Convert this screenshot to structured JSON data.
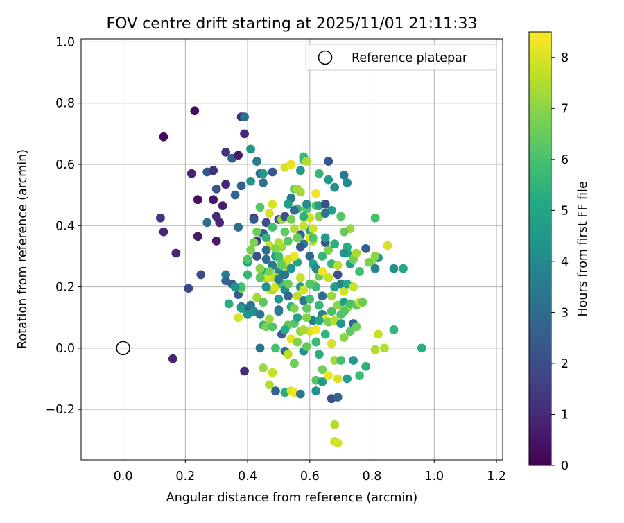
{
  "chart_data": {
    "type": "scatter",
    "title": "FOV centre drift starting at 2025/11/01 21:11:33",
    "xlabel": "Angular distance from reference (arcmin)",
    "ylabel": "Rotation from reference (arcmin)",
    "xlim": [
      -0.135,
      1.22
    ],
    "ylim": [
      -0.365,
      1.01
    ],
    "xticks": [
      0.0,
      0.2,
      0.4,
      0.6,
      0.8,
      1.0,
      1.2
    ],
    "xtick_labels": [
      "0.0",
      "0.2",
      "0.4",
      "0.6",
      "0.8",
      "1.0",
      "1.2"
    ],
    "yticks": [
      -0.2,
      0.0,
      0.2,
      0.4,
      0.6,
      0.8,
      1.0
    ],
    "ytick_labels": [
      "−0.2",
      "0.0",
      "0.2",
      "0.4",
      "0.6",
      "0.8",
      "1.0"
    ],
    "grid": true,
    "legend": {
      "placement": "top-right",
      "entries": [
        "Reference platepar"
      ]
    },
    "reference_point": {
      "x": 0.0,
      "y": 0.0,
      "label": "Reference platepar"
    },
    "colorbar": {
      "label": "Hours from first FF file",
      "min": 0,
      "max": 8.5,
      "ticks": [
        0,
        1,
        2,
        3,
        4,
        5,
        6,
        7,
        8
      ],
      "tick_labels": [
        "0",
        "1",
        "2",
        "3",
        "4",
        "5",
        "6",
        "7",
        "8"
      ],
      "colormap": "viridis"
    },
    "points": [
      [
        0.23,
        0.775,
        0.2
      ],
      [
        0.13,
        0.69,
        0.2
      ],
      [
        0.12,
        0.425,
        1.3
      ],
      [
        0.13,
        0.38,
        0.9
      ],
      [
        0.17,
        0.31,
        0.9
      ],
      [
        0.21,
        0.195,
        1.8
      ],
      [
        0.24,
        0.485,
        0.4
      ],
      [
        0.24,
        0.365,
        0.6
      ],
      [
        0.25,
        0.24,
        2.0
      ],
      [
        0.16,
        -0.035,
        0.8
      ],
      [
        0.22,
        0.57,
        0.8
      ],
      [
        0.27,
        0.575,
        2.4
      ],
      [
        0.29,
        0.58,
        1.2
      ],
      [
        0.3,
        0.52,
        2.2
      ],
      [
        0.29,
        0.485,
        0.5
      ],
      [
        0.3,
        0.43,
        1.0
      ],
      [
        0.27,
        0.41,
        3.0
      ],
      [
        0.31,
        0.41,
        0.9
      ],
      [
        0.3,
        0.35,
        0.6
      ],
      [
        0.32,
        0.465,
        0.7
      ],
      [
        0.33,
        0.535,
        0.9
      ],
      [
        0.33,
        0.64,
        1.2
      ],
      [
        0.35,
        0.62,
        2.6
      ],
      [
        0.36,
        0.5,
        2.8
      ],
      [
        0.38,
        0.53,
        2.6
      ],
      [
        0.37,
        0.63,
        0.6
      ],
      [
        0.38,
        0.755,
        1.0
      ],
      [
        0.39,
        0.755,
        3.2
      ],
      [
        0.39,
        0.7,
        1.0
      ],
      [
        0.41,
        0.65,
        4.4
      ],
      [
        0.41,
        0.545,
        4.3
      ],
      [
        0.43,
        0.61,
        3.5
      ],
      [
        0.44,
        0.57,
        3.1
      ],
      [
        0.45,
        0.57,
        4.6
      ],
      [
        0.45,
        0.54,
        3.2
      ],
      [
        0.48,
        0.575,
        2.3
      ],
      [
        0.37,
        0.395,
        3.0
      ],
      [
        0.33,
        0.24,
        3.6
      ],
      [
        0.33,
        0.22,
        2.8
      ],
      [
        0.35,
        0.21,
        2.6
      ],
      [
        0.34,
        0.145,
        5.3
      ],
      [
        0.37,
        0.175,
        2.5
      ],
      [
        0.38,
        0.135,
        3.2
      ],
      [
        0.4,
        0.13,
        2.3
      ],
      [
        0.41,
        0.14,
        3.3
      ],
      [
        0.37,
        0.1,
        8.0
      ],
      [
        0.38,
        0.195,
        7.0
      ],
      [
        0.38,
        0.2,
        5.9
      ],
      [
        0.39,
        -0.075,
        1.0
      ],
      [
        0.4,
        0.28,
        5.0
      ],
      [
        0.41,
        0.32,
        6.8
      ],
      [
        0.42,
        0.425,
        1.0
      ],
      [
        0.43,
        0.35,
        1.4
      ],
      [
        0.43,
        0.3,
        2.2
      ],
      [
        0.44,
        0.46,
        6.2
      ],
      [
        0.45,
        0.375,
        2.5
      ],
      [
        0.46,
        0.36,
        5.5
      ],
      [
        0.46,
        0.41,
        2.0
      ],
      [
        0.46,
        0.29,
        3.1
      ],
      [
        0.47,
        0.335,
        7.8
      ],
      [
        0.47,
        0.44,
        8.0
      ],
      [
        0.48,
        0.47,
        8.0
      ],
      [
        0.48,
        0.395,
        5.9
      ],
      [
        0.49,
        0.3,
        4.8
      ],
      [
        0.5,
        0.25,
        3.7
      ],
      [
        0.5,
        0.42,
        2.2
      ],
      [
        0.51,
        0.33,
        7.2
      ],
      [
        0.51,
        0.42,
        7.2
      ],
      [
        0.51,
        0.28,
        6.4
      ],
      [
        0.52,
        0.59,
        8.0
      ],
      [
        0.53,
        0.35,
        6.3
      ],
      [
        0.53,
        0.265,
        7.5
      ],
      [
        0.54,
        0.6,
        8.2
      ],
      [
        0.54,
        0.49,
        3.5
      ],
      [
        0.55,
        0.52,
        6.6
      ],
      [
        0.56,
        0.52,
        7.3
      ],
      [
        0.56,
        0.455,
        5.7
      ],
      [
        0.57,
        0.51,
        7.3
      ],
      [
        0.57,
        0.58,
        4.5
      ],
      [
        0.58,
        0.615,
        6.0
      ],
      [
        0.58,
        0.625,
        5.7
      ],
      [
        0.59,
        0.61,
        7.5
      ],
      [
        0.59,
        0.455,
        6.2
      ],
      [
        0.6,
        0.425,
        7.9
      ],
      [
        0.6,
        0.385,
        5.1
      ],
      [
        0.61,
        0.35,
        7.4
      ],
      [
        0.62,
        0.505,
        8.3
      ],
      [
        0.62,
        0.465,
        6.2
      ],
      [
        0.63,
        0.465,
        4.7
      ],
      [
        0.63,
        0.57,
        5.6
      ],
      [
        0.65,
        0.345,
        2.2
      ],
      [
        0.65,
        0.47,
        2.0
      ],
      [
        0.66,
        0.61,
        2.2
      ],
      [
        0.66,
        0.55,
        4.6
      ],
      [
        0.67,
        0.45,
        4.8
      ],
      [
        0.68,
        0.525,
        4.2
      ],
      [
        0.7,
        0.43,
        6.2
      ],
      [
        0.71,
        0.565,
        3.4
      ],
      [
        0.72,
        0.54,
        4.0
      ],
      [
        0.73,
        0.39,
        7.2
      ],
      [
        0.71,
        0.38,
        6.5
      ],
      [
        0.72,
        0.33,
        5.3
      ],
      [
        0.72,
        0.31,
        5.0
      ],
      [
        0.73,
        0.275,
        4.8
      ],
      [
        0.74,
        0.29,
        6.7
      ],
      [
        0.75,
        0.31,
        7.4
      ],
      [
        0.76,
        0.25,
        6.0
      ],
      [
        0.78,
        0.325,
        2.7
      ],
      [
        0.8,
        0.28,
        7.5
      ],
      [
        0.82,
        0.295,
        4.2
      ],
      [
        0.81,
        0.425,
        6.0
      ],
      [
        0.81,
        0.26,
        3.8
      ],
      [
        0.85,
        0.335,
        8.0
      ],
      [
        0.87,
        0.26,
        4.2
      ],
      [
        0.9,
        0.26,
        5.1
      ],
      [
        0.45,
        0.25,
        5.0
      ],
      [
        0.46,
        0.23,
        7.5
      ],
      [
        0.47,
        0.23,
        8.0
      ],
      [
        0.47,
        0.19,
        8.3
      ],
      [
        0.48,
        0.19,
        7.4
      ],
      [
        0.49,
        0.23,
        7.6
      ],
      [
        0.49,
        0.2,
        8.0
      ],
      [
        0.5,
        0.16,
        4.5
      ],
      [
        0.5,
        0.125,
        2.6
      ],
      [
        0.51,
        0.21,
        6.0
      ],
      [
        0.52,
        0.24,
        3.2
      ],
      [
        0.52,
        0.19,
        4.1
      ],
      [
        0.53,
        0.21,
        6.5
      ],
      [
        0.53,
        0.17,
        2.8
      ],
      [
        0.54,
        0.135,
        5.4
      ],
      [
        0.55,
        0.13,
        6.9
      ],
      [
        0.56,
        0.17,
        7.7
      ],
      [
        0.57,
        0.2,
        4.6
      ],
      [
        0.58,
        0.155,
        3.3
      ],
      [
        0.58,
        0.19,
        8.0
      ],
      [
        0.59,
        0.13,
        6.4
      ],
      [
        0.6,
        0.16,
        5.9
      ],
      [
        0.61,
        0.21,
        7.4
      ],
      [
        0.62,
        0.2,
        5.8
      ],
      [
        0.63,
        0.235,
        6.5
      ],
      [
        0.63,
        0.14,
        5.6
      ],
      [
        0.64,
        0.11,
        3.8
      ],
      [
        0.65,
        0.095,
        8.1
      ],
      [
        0.66,
        0.085,
        6.8
      ],
      [
        0.67,
        0.12,
        6.0
      ],
      [
        0.68,
        0.09,
        7.6
      ],
      [
        0.69,
        0.14,
        7.0
      ],
      [
        0.7,
        0.11,
        6.1
      ],
      [
        0.71,
        0.15,
        4.8
      ],
      [
        0.72,
        0.13,
        7.0
      ],
      [
        0.73,
        0.145,
        6.0
      ],
      [
        0.74,
        0.08,
        2.9
      ],
      [
        0.75,
        0.14,
        6.4
      ],
      [
        0.76,
        0.15,
        8.0
      ],
      [
        0.77,
        0.15,
        6.6
      ],
      [
        0.42,
        0.12,
        4.2
      ],
      [
        0.43,
        0.165,
        7.3
      ],
      [
        0.44,
        0.11,
        3.2
      ],
      [
        0.45,
        0.075,
        5.6
      ],
      [
        0.46,
        0.07,
        6.8
      ],
      [
        0.47,
        0.095,
        7.2
      ],
      [
        0.48,
        0.07,
        6.2
      ],
      [
        0.49,
        0.0,
        6.0
      ],
      [
        0.5,
        0.12,
        3.6
      ],
      [
        0.51,
        0.045,
        2.5
      ],
      [
        0.52,
        -0.01,
        3.1
      ],
      [
        0.53,
        0.075,
        6.4
      ],
      [
        0.53,
        -0.02,
        7.7
      ],
      [
        0.54,
        0.03,
        8.2
      ],
      [
        0.55,
        0.08,
        6.2
      ],
      [
        0.55,
        -0.05,
        6.6
      ],
      [
        0.56,
        0.02,
        6.9
      ],
      [
        0.57,
        0.055,
        7.0
      ],
      [
        0.58,
        -0.01,
        4.2
      ],
      [
        0.59,
        0.005,
        6.4
      ],
      [
        0.6,
        0.055,
        8.0
      ],
      [
        0.61,
        0.09,
        3.6
      ],
      [
        0.62,
        0.02,
        5.7
      ],
      [
        0.63,
        -0.02,
        5.3
      ],
      [
        0.64,
        -0.07,
        6.7
      ],
      [
        0.65,
        0.045,
        5.5
      ],
      [
        0.66,
        -0.09,
        8.2
      ],
      [
        0.67,
        0.015,
        8.0
      ],
      [
        0.68,
        -0.04,
        7.3
      ],
      [
        0.69,
        -0.1,
        8.0
      ],
      [
        0.7,
        -0.04,
        5.9
      ],
      [
        0.71,
        0.035,
        7.0
      ],
      [
        0.72,
        -0.1,
        4.8
      ],
      [
        0.73,
        0.055,
        6.4
      ],
      [
        0.74,
        -0.04,
        4.5
      ],
      [
        0.76,
        -0.09,
        5.8
      ],
      [
        0.78,
        -0.06,
        5.4
      ],
      [
        0.81,
        -0.005,
        7.5
      ],
      [
        0.82,
        0.045,
        7.8
      ],
      [
        0.84,
        0.0,
        7.5
      ],
      [
        0.87,
        0.06,
        5.6
      ],
      [
        0.96,
        0.0,
        5.3
      ],
      [
        0.47,
        -0.12,
        7.5
      ],
      [
        0.48,
        -0.08,
        7.8
      ],
      [
        0.49,
        -0.14,
        2.8
      ],
      [
        0.52,
        -0.145,
        5.2
      ],
      [
        0.54,
        -0.14,
        8.0
      ],
      [
        0.55,
        -0.145,
        8.3
      ],
      [
        0.57,
        -0.15,
        3.3
      ],
      [
        0.62,
        -0.14,
        4.2
      ],
      [
        0.62,
        -0.105,
        6.2
      ],
      [
        0.64,
        -0.11,
        4.6
      ],
      [
        0.67,
        -0.165,
        2.0
      ],
      [
        0.69,
        -0.16,
        2.8
      ],
      [
        0.68,
        -0.25,
        7.5
      ],
      [
        0.68,
        -0.305,
        7.8
      ],
      [
        0.69,
        -0.31,
        8.0
      ],
      [
        0.45,
        -0.065,
        7.2
      ],
      [
        0.44,
        0.0,
        3.3
      ],
      [
        0.4,
        0.11,
        4.4
      ],
      [
        0.4,
        0.29,
        6.2
      ],
      [
        0.42,
        0.345,
        6.8
      ],
      [
        0.44,
        0.26,
        7.0
      ],
      [
        0.46,
        0.32,
        3.1
      ],
      [
        0.5,
        0.345,
        7.5
      ],
      [
        0.52,
        0.38,
        6.4
      ],
      [
        0.55,
        0.39,
        7.5
      ],
      [
        0.57,
        0.37,
        2.6
      ],
      [
        0.58,
        0.34,
        3.6
      ],
      [
        0.6,
        0.3,
        2.8
      ],
      [
        0.61,
        0.275,
        5.0
      ],
      [
        0.62,
        0.26,
        4.0
      ],
      [
        0.64,
        0.3,
        5.6
      ],
      [
        0.66,
        0.32,
        6.8
      ],
      [
        0.67,
        0.275,
        5.6
      ],
      [
        0.68,
        0.2,
        4.8
      ],
      [
        0.69,
        0.24,
        2.0
      ],
      [
        0.7,
        0.21,
        3.8
      ],
      [
        0.71,
        0.185,
        8.0
      ],
      [
        0.72,
        0.21,
        5.2
      ],
      [
        0.66,
        0.23,
        7.8
      ],
      [
        0.64,
        0.25,
        8.3
      ],
      [
        0.6,
        0.21,
        6.2
      ],
      [
        0.57,
        0.23,
        7.8
      ],
      [
        0.56,
        0.28,
        5.1
      ],
      [
        0.55,
        0.3,
        8.3
      ],
      [
        0.54,
        0.26,
        4.4
      ],
      [
        0.53,
        0.29,
        8.0
      ],
      [
        0.51,
        0.27,
        6.5
      ],
      [
        0.5,
        0.3,
        5.9
      ],
      [
        0.5,
        0.225,
        3.4
      ],
      [
        0.49,
        0.325,
        7.0
      ],
      [
        0.48,
        0.27,
        3.5
      ],
      [
        0.47,
        0.25,
        6.8
      ],
      [
        0.46,
        0.2,
        4.2
      ],
      [
        0.45,
        0.15,
        6.3
      ],
      [
        0.56,
        0.1,
        5.0
      ],
      [
        0.58,
        0.06,
        7.4
      ],
      [
        0.62,
        0.06,
        8.4
      ],
      [
        0.63,
        0.09,
        5.1
      ],
      [
        0.7,
        0.08,
        4.4
      ],
      [
        0.71,
        0.12,
        6.2
      ],
      [
        0.75,
        0.07,
        6.6
      ],
      [
        0.67,
        0.17,
        7.2
      ],
      [
        0.64,
        0.17,
        3.1
      ],
      [
        0.59,
        0.1,
        6.9
      ],
      [
        0.52,
        0.06,
        5.2
      ],
      [
        0.44,
        0.23,
        6.4
      ],
      [
        0.4,
        0.24,
        5.6
      ],
      [
        0.38,
        0.13,
        4.7
      ],
      [
        0.36,
        0.2,
        4.3
      ],
      [
        0.42,
        0.42,
        2.3
      ],
      [
        0.43,
        0.38,
        6.6
      ],
      [
        0.55,
        0.45,
        3.0
      ],
      [
        0.52,
        0.43,
        2.0
      ],
      [
        0.6,
        0.36,
        8.2
      ],
      [
        0.61,
        0.39,
        7.9
      ],
      [
        0.65,
        0.36,
        4.6
      ],
      [
        0.68,
        0.34,
        5.3
      ],
      [
        0.71,
        0.31,
        4.4
      ],
      [
        0.69,
        0.27,
        7.6
      ],
      [
        0.74,
        0.2,
        7.8
      ],
      [
        0.76,
        0.25,
        5.9
      ],
      [
        0.79,
        0.28,
        6.8
      ],
      [
        0.81,
        0.3,
        7.0
      ],
      [
        0.57,
        0.33,
        2.4
      ],
      [
        0.61,
        0.36,
        6.1
      ],
      [
        0.63,
        0.43,
        6.9
      ],
      [
        0.65,
        0.44,
        3.2
      ],
      [
        0.58,
        0.4,
        7.8
      ],
      [
        0.56,
        0.36,
        6.6
      ],
      [
        0.59,
        0.47,
        4.0
      ],
      [
        0.54,
        0.42,
        6.7
      ],
      [
        0.58,
        0.43,
        5.4
      ],
      [
        0.53,
        0.47,
        4.7
      ]
    ]
  }
}
